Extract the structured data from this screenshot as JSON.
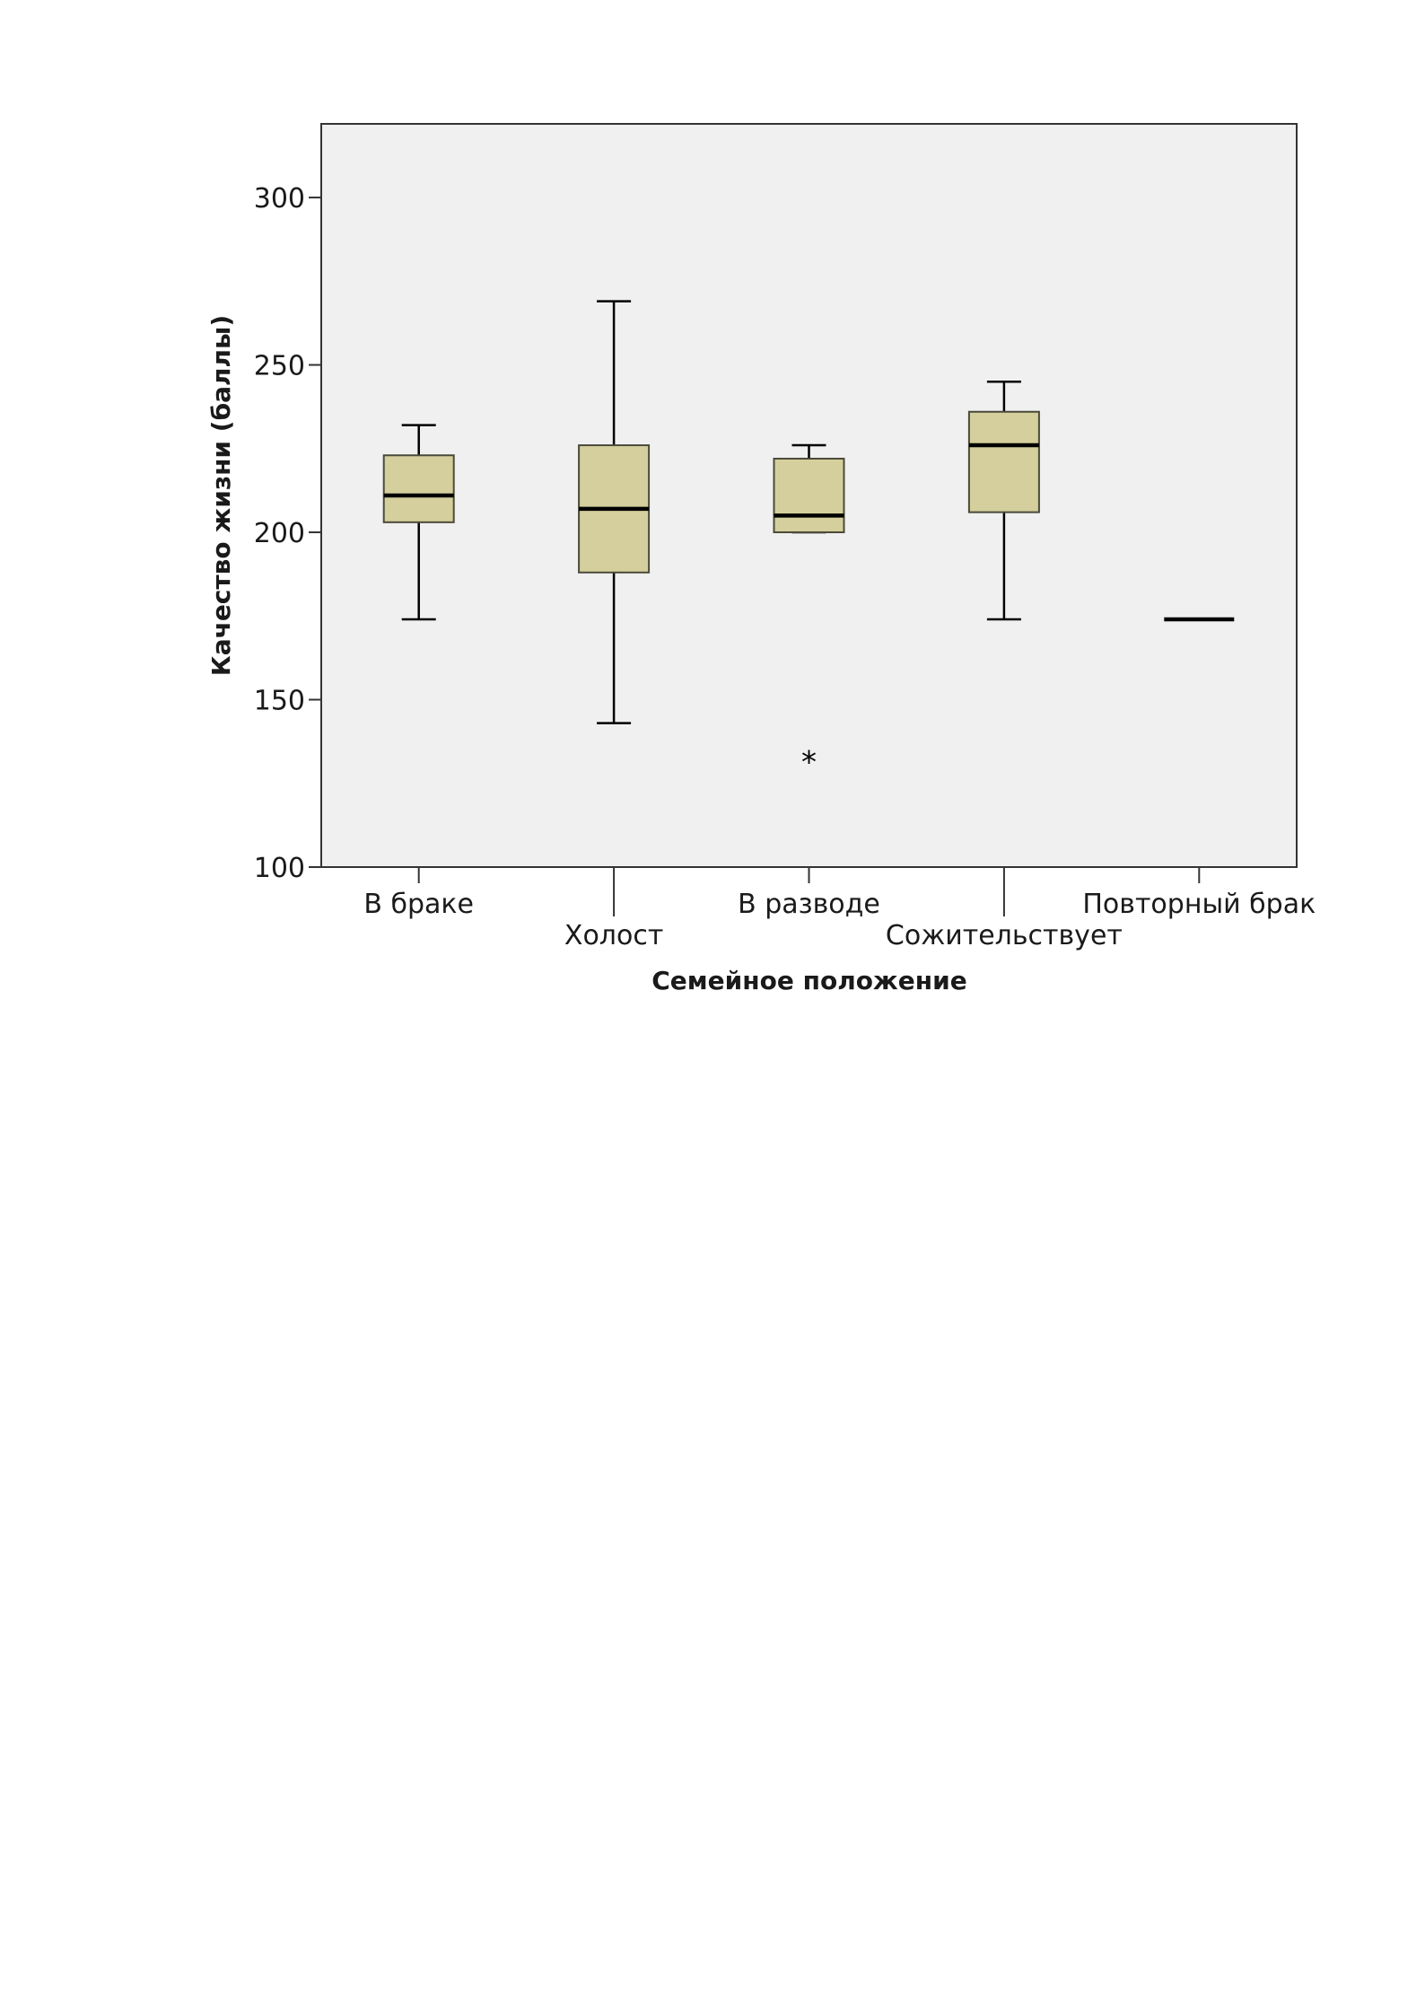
{
  "chart_data": {
    "type": "boxplot",
    "xlabel": "Семейное положение",
    "ylabel": "Качество жизни (баллы)",
    "ylim": [
      100,
      322
    ],
    "yticks": [
      100,
      150,
      200,
      250,
      300
    ],
    "grid": false,
    "categories": [
      "В браке",
      "Холост",
      "В разводе",
      "Сожительствует",
      "Повторный брак"
    ],
    "boxes": [
      {
        "category": "В браке",
        "whisker_low": 174,
        "q1": 203,
        "median": 211,
        "q3": 223,
        "whisker_high": 232,
        "outliers": [],
        "extremes": []
      },
      {
        "category": "Холост",
        "whisker_low": 143,
        "q1": 188,
        "median": 207,
        "q3": 226,
        "whisker_high": 269,
        "outliers": [],
        "extremes": []
      },
      {
        "category": "В разводе",
        "whisker_low": 200,
        "q1": 200,
        "median": 205,
        "q3": 222,
        "whisker_high": 226,
        "outliers": [],
        "extremes": [
          132
        ]
      },
      {
        "category": "Сожительствует",
        "whisker_low": 174,
        "q1": 206,
        "median": 226,
        "q3": 236,
        "whisker_high": 245,
        "outliers": [],
        "extremes": []
      },
      {
        "category": "Повторный брак",
        "whisker_low": 174,
        "q1": 174,
        "median": 174,
        "q3": 174,
        "whisker_high": 174,
        "outliers": [],
        "extremes": []
      }
    ],
    "colors": {
      "plot_background": "#f0f0f0",
      "box_fill": "#d4cf9c",
      "box_stroke": "#4a4a3a",
      "median": "#000000",
      "axis": "#333333"
    }
  }
}
